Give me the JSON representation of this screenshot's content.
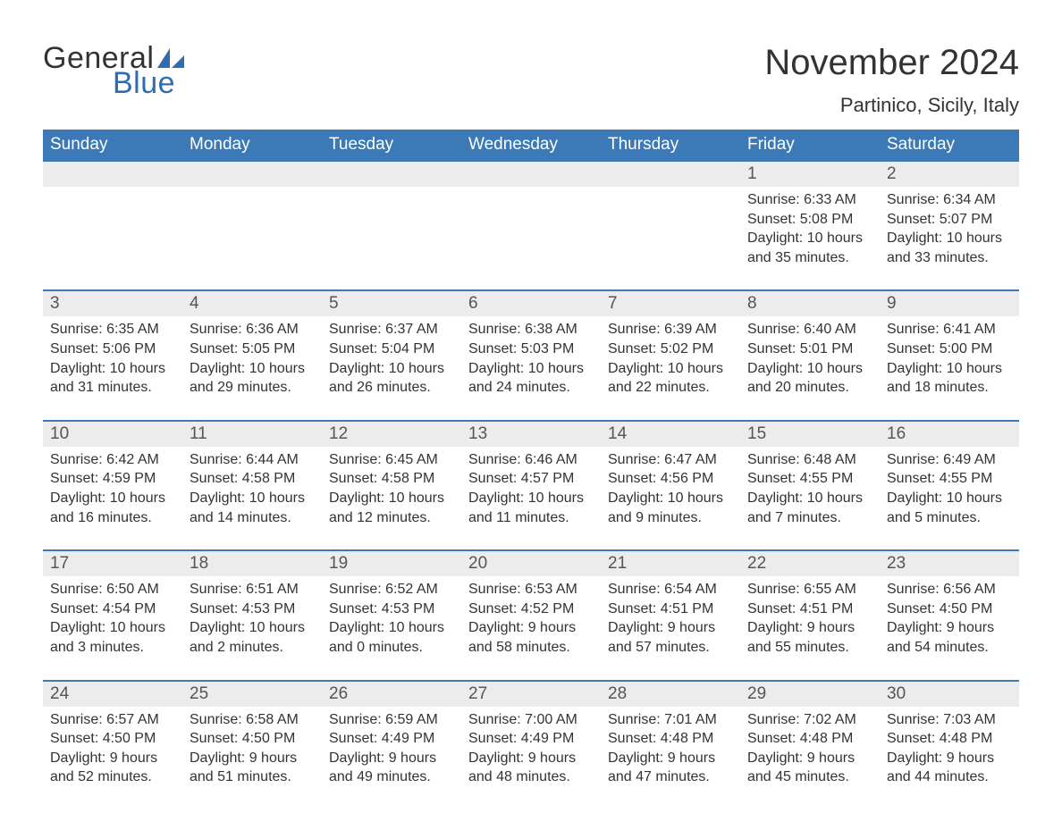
{
  "brand": {
    "part1": "General",
    "part2": "Blue",
    "sail_color": "#2f6db0"
  },
  "title": "November 2024",
  "location": "Partinico, Sicily, Italy",
  "colors": {
    "header_bg": "#3b79b7",
    "header_text": "#ffffff",
    "row_accent": "#3b79b7",
    "daynum_bg": "#ececec",
    "text": "#333333"
  },
  "day_headers": [
    "Sunday",
    "Monday",
    "Tuesday",
    "Wednesday",
    "Thursday",
    "Friday",
    "Saturday"
  ],
  "weeks": [
    [
      null,
      null,
      null,
      null,
      null,
      {
        "n": "1",
        "sunrise": "Sunrise: 6:33 AM",
        "sunset": "Sunset: 5:08 PM",
        "day1": "Daylight: 10 hours",
        "day2": "and 35 minutes."
      },
      {
        "n": "2",
        "sunrise": "Sunrise: 6:34 AM",
        "sunset": "Sunset: 5:07 PM",
        "day1": "Daylight: 10 hours",
        "day2": "and 33 minutes."
      }
    ],
    [
      {
        "n": "3",
        "sunrise": "Sunrise: 6:35 AM",
        "sunset": "Sunset: 5:06 PM",
        "day1": "Daylight: 10 hours",
        "day2": "and 31 minutes."
      },
      {
        "n": "4",
        "sunrise": "Sunrise: 6:36 AM",
        "sunset": "Sunset: 5:05 PM",
        "day1": "Daylight: 10 hours",
        "day2": "and 29 minutes."
      },
      {
        "n": "5",
        "sunrise": "Sunrise: 6:37 AM",
        "sunset": "Sunset: 5:04 PM",
        "day1": "Daylight: 10 hours",
        "day2": "and 26 minutes."
      },
      {
        "n": "6",
        "sunrise": "Sunrise: 6:38 AM",
        "sunset": "Sunset: 5:03 PM",
        "day1": "Daylight: 10 hours",
        "day2": "and 24 minutes."
      },
      {
        "n": "7",
        "sunrise": "Sunrise: 6:39 AM",
        "sunset": "Sunset: 5:02 PM",
        "day1": "Daylight: 10 hours",
        "day2": "and 22 minutes."
      },
      {
        "n": "8",
        "sunrise": "Sunrise: 6:40 AM",
        "sunset": "Sunset: 5:01 PM",
        "day1": "Daylight: 10 hours",
        "day2": "and 20 minutes."
      },
      {
        "n": "9",
        "sunrise": "Sunrise: 6:41 AM",
        "sunset": "Sunset: 5:00 PM",
        "day1": "Daylight: 10 hours",
        "day2": "and 18 minutes."
      }
    ],
    [
      {
        "n": "10",
        "sunrise": "Sunrise: 6:42 AM",
        "sunset": "Sunset: 4:59 PM",
        "day1": "Daylight: 10 hours",
        "day2": "and 16 minutes."
      },
      {
        "n": "11",
        "sunrise": "Sunrise: 6:44 AM",
        "sunset": "Sunset: 4:58 PM",
        "day1": "Daylight: 10 hours",
        "day2": "and 14 minutes."
      },
      {
        "n": "12",
        "sunrise": "Sunrise: 6:45 AM",
        "sunset": "Sunset: 4:58 PM",
        "day1": "Daylight: 10 hours",
        "day2": "and 12 minutes."
      },
      {
        "n": "13",
        "sunrise": "Sunrise: 6:46 AM",
        "sunset": "Sunset: 4:57 PM",
        "day1": "Daylight: 10 hours",
        "day2": "and 11 minutes."
      },
      {
        "n": "14",
        "sunrise": "Sunrise: 6:47 AM",
        "sunset": "Sunset: 4:56 PM",
        "day1": "Daylight: 10 hours",
        "day2": "and 9 minutes."
      },
      {
        "n": "15",
        "sunrise": "Sunrise: 6:48 AM",
        "sunset": "Sunset: 4:55 PM",
        "day1": "Daylight: 10 hours",
        "day2": "and 7 minutes."
      },
      {
        "n": "16",
        "sunrise": "Sunrise: 6:49 AM",
        "sunset": "Sunset: 4:55 PM",
        "day1": "Daylight: 10 hours",
        "day2": "and 5 minutes."
      }
    ],
    [
      {
        "n": "17",
        "sunrise": "Sunrise: 6:50 AM",
        "sunset": "Sunset: 4:54 PM",
        "day1": "Daylight: 10 hours",
        "day2": "and 3 minutes."
      },
      {
        "n": "18",
        "sunrise": "Sunrise: 6:51 AM",
        "sunset": "Sunset: 4:53 PM",
        "day1": "Daylight: 10 hours",
        "day2": "and 2 minutes."
      },
      {
        "n": "19",
        "sunrise": "Sunrise: 6:52 AM",
        "sunset": "Sunset: 4:53 PM",
        "day1": "Daylight: 10 hours",
        "day2": "and 0 minutes."
      },
      {
        "n": "20",
        "sunrise": "Sunrise: 6:53 AM",
        "sunset": "Sunset: 4:52 PM",
        "day1": "Daylight: 9 hours",
        "day2": "and 58 minutes."
      },
      {
        "n": "21",
        "sunrise": "Sunrise: 6:54 AM",
        "sunset": "Sunset: 4:51 PM",
        "day1": "Daylight: 9 hours",
        "day2": "and 57 minutes."
      },
      {
        "n": "22",
        "sunrise": "Sunrise: 6:55 AM",
        "sunset": "Sunset: 4:51 PM",
        "day1": "Daylight: 9 hours",
        "day2": "and 55 minutes."
      },
      {
        "n": "23",
        "sunrise": "Sunrise: 6:56 AM",
        "sunset": "Sunset: 4:50 PM",
        "day1": "Daylight: 9 hours",
        "day2": "and 54 minutes."
      }
    ],
    [
      {
        "n": "24",
        "sunrise": "Sunrise: 6:57 AM",
        "sunset": "Sunset: 4:50 PM",
        "day1": "Daylight: 9 hours",
        "day2": "and 52 minutes."
      },
      {
        "n": "25",
        "sunrise": "Sunrise: 6:58 AM",
        "sunset": "Sunset: 4:50 PM",
        "day1": "Daylight: 9 hours",
        "day2": "and 51 minutes."
      },
      {
        "n": "26",
        "sunrise": "Sunrise: 6:59 AM",
        "sunset": "Sunset: 4:49 PM",
        "day1": "Daylight: 9 hours",
        "day2": "and 49 minutes."
      },
      {
        "n": "27",
        "sunrise": "Sunrise: 7:00 AM",
        "sunset": "Sunset: 4:49 PM",
        "day1": "Daylight: 9 hours",
        "day2": "and 48 minutes."
      },
      {
        "n": "28",
        "sunrise": "Sunrise: 7:01 AM",
        "sunset": "Sunset: 4:48 PM",
        "day1": "Daylight: 9 hours",
        "day2": "and 47 minutes."
      },
      {
        "n": "29",
        "sunrise": "Sunrise: 7:02 AM",
        "sunset": "Sunset: 4:48 PM",
        "day1": "Daylight: 9 hours",
        "day2": "and 45 minutes."
      },
      {
        "n": "30",
        "sunrise": "Sunrise: 7:03 AM",
        "sunset": "Sunset: 4:48 PM",
        "day1": "Daylight: 9 hours",
        "day2": "and 44 minutes."
      }
    ]
  ]
}
